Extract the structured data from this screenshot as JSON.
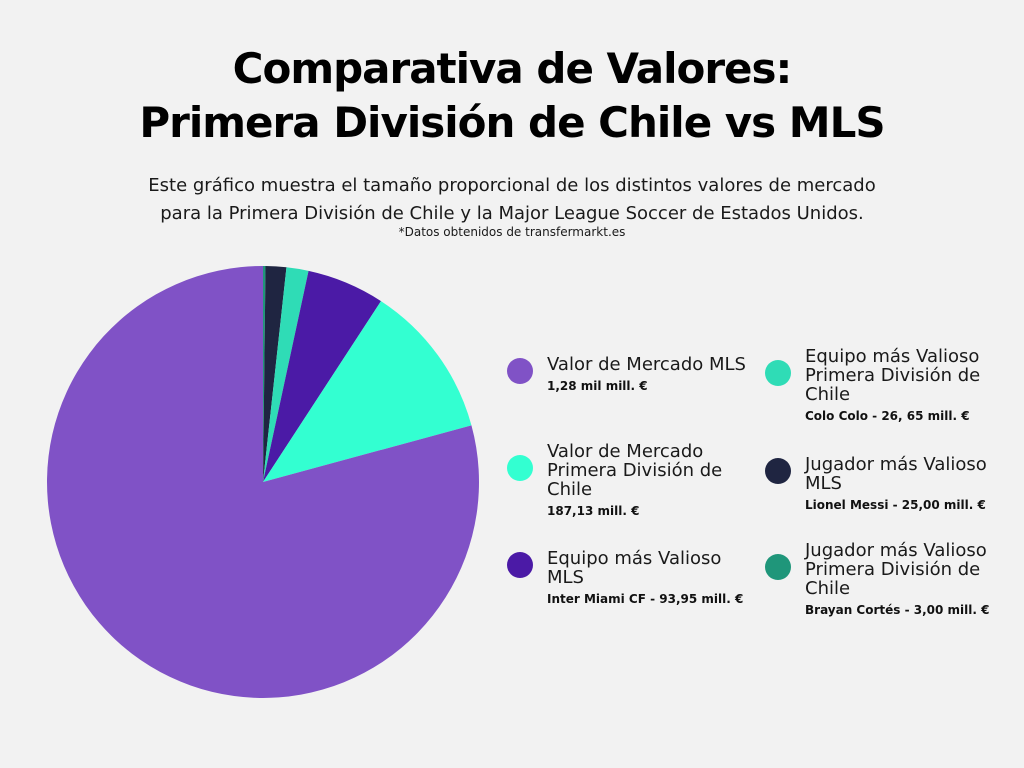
{
  "title_line1": "Comparativa de Valores:",
  "title_line2": "Primera División de Chile vs MLS",
  "subtitle_line1": "Este gráfico muestra el tamaño proporcional de los distintos valores de mercado",
  "subtitle_line2": "para la Primera División de Chile y la Major League Soccer de Estados Unidos.",
  "note": "*Datos obtenidos de transfermarkt.es",
  "legend": [
    {
      "label": "Valor de Mercado MLS",
      "value_text": "1,28 mil mill. €",
      "color": "#8052c6"
    },
    {
      "label": "Valor de Mercado Primera División de Chile",
      "value_text": "187,13 mill. €",
      "color": "#33ffd1"
    },
    {
      "label": "Equipo más Valioso MLS",
      "value_text": "Inter Miami CF - 93,95 mill. €",
      "color": "#4b1aa6"
    },
    {
      "label": "Equipo más Valioso Primera División de Chile",
      "value_text": "Colo Colo - 26, 65 mill. €",
      "color": "#2fdcb6"
    },
    {
      "label": "Jugador más Valioso MLS",
      "value_text": "Lionel Messi - 25,00 mill. €",
      "color": "#1f2541"
    },
    {
      "label": "Jugador más Valioso Primera División de Chile",
      "value_text": "Brayan Cortés - 3,00 mill. €",
      "color": "#1f967a"
    }
  ],
  "chart_data": {
    "type": "pie",
    "title": "Comparativa de Valores: Primera División de Chile vs MLS",
    "unit": "mill. €",
    "slices": [
      {
        "label": "Valor de Mercado MLS",
        "value": 1280,
        "color": "#8052c6"
      },
      {
        "label": "Valor de Mercado Primera División de Chile",
        "value": 187.13,
        "color": "#33ffd1"
      },
      {
        "label": "Equipo más Valioso MLS",
        "value": 93.95,
        "color": "#4b1aa6"
      },
      {
        "label": "Equipo más Valioso Primera División de Chile",
        "value": 26.65,
        "color": "#2fdcb6"
      },
      {
        "label": "Jugador más Valioso MLS",
        "value": 25.0,
        "color": "#1f2541"
      },
      {
        "label": "Jugador más Valioso Primera División de Chile",
        "value": 3.0,
        "color": "#1f967a"
      }
    ],
    "start_angle": "12 o'clock",
    "direction": "clockwise",
    "legend_position": "right"
  }
}
